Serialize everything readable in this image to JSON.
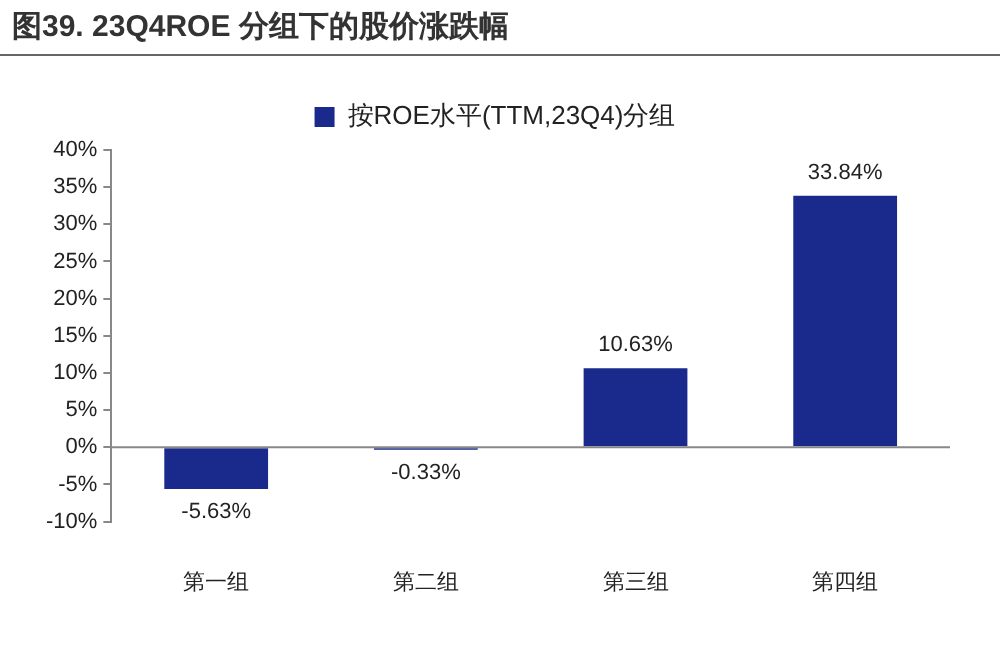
{
  "chart_data": {
    "type": "bar",
    "title": "图39. 23Q4ROE 分组下的股价涨跌幅",
    "categories": [
      "第一组",
      "第二组",
      "第三组",
      "第四组"
    ],
    "series": [
      {
        "name": "按ROE水平(TTM,23Q4)分组",
        "color": "#1a2a8c",
        "values": [
          -5.63,
          -0.33,
          10.63,
          33.84
        ],
        "value_labels": [
          "-5.63%",
          "-0.33%",
          "10.63%",
          "33.84%"
        ]
      }
    ],
    "ylim": [
      -10,
      40
    ],
    "yticks": [
      {
        "value": -10,
        "label": "-10%"
      },
      {
        "value": -5,
        "label": "-5%"
      },
      {
        "value": 0,
        "label": "0%"
      },
      {
        "value": 5,
        "label": "5%"
      },
      {
        "value": 10,
        "label": "10%"
      },
      {
        "value": 15,
        "label": "15%"
      },
      {
        "value": 20,
        "label": "20%"
      },
      {
        "value": 25,
        "label": "25%"
      },
      {
        "value": 30,
        "label": "30%"
      },
      {
        "value": 35,
        "label": "35%"
      },
      {
        "value": 40,
        "label": "40%"
      }
    ],
    "ref_lines": [
      {
        "axis": "y",
        "value": 0,
        "color": "#888888"
      }
    ],
    "grid": false,
    "legend": "top"
  }
}
